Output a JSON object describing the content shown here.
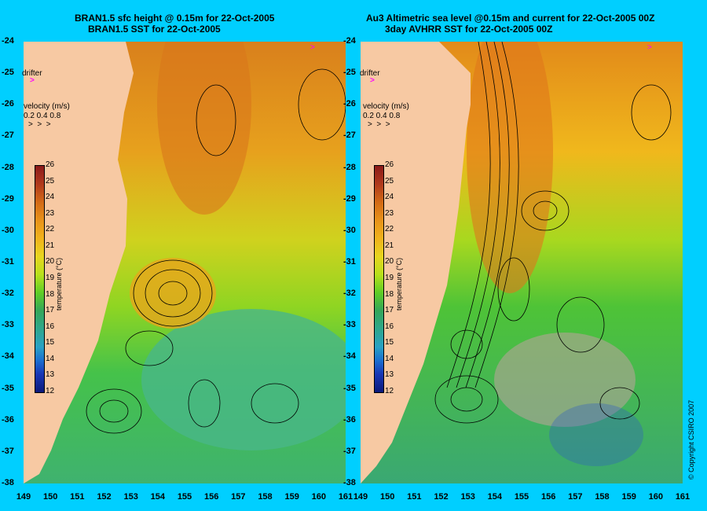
{
  "left": {
    "title_line1": "BRAN1.5 sfc height @ 0.15m for 22-Oct-2005",
    "title_line2": "BRAN1.5 SST for 22-Oct-2005"
  },
  "right": {
    "title_line1": "Au3 Altimetric sea level  @0.15m and current for 22-Oct-2005 00Z",
    "title_line2": "3day AVHRR SST for 22-Oct-2005 00Z"
  },
  "drifter_label": "drifter",
  "velocity_label": "velocity (m/s)",
  "velocity_values": "0.2 0.4 0.8",
  "legend_title": "temperature (°C)",
  "legend_ticks": [
    "26",
    "25",
    "24",
    "23",
    "22",
    "21",
    "20",
    "19",
    "18",
    "17",
    "16",
    "15",
    "14",
    "13",
    "12"
  ],
  "y_ticks": [
    "-24",
    "-25",
    "-26",
    "-27",
    "-28",
    "-29",
    "-30",
    "-31",
    "-32",
    "-33",
    "-34",
    "-35",
    "-36",
    "-37",
    "-38"
  ],
  "x_ticks": [
    "149",
    "150",
    "151",
    "152",
    "153",
    "154",
    "155",
    "156",
    "157",
    "158",
    "159",
    "160",
    "161"
  ],
  "copyright": "© Copyright CSIRO 2007",
  "colors": {
    "background": "#00cfff",
    "land": "#f7c9a3",
    "drifter": "#ff00ff"
  }
}
